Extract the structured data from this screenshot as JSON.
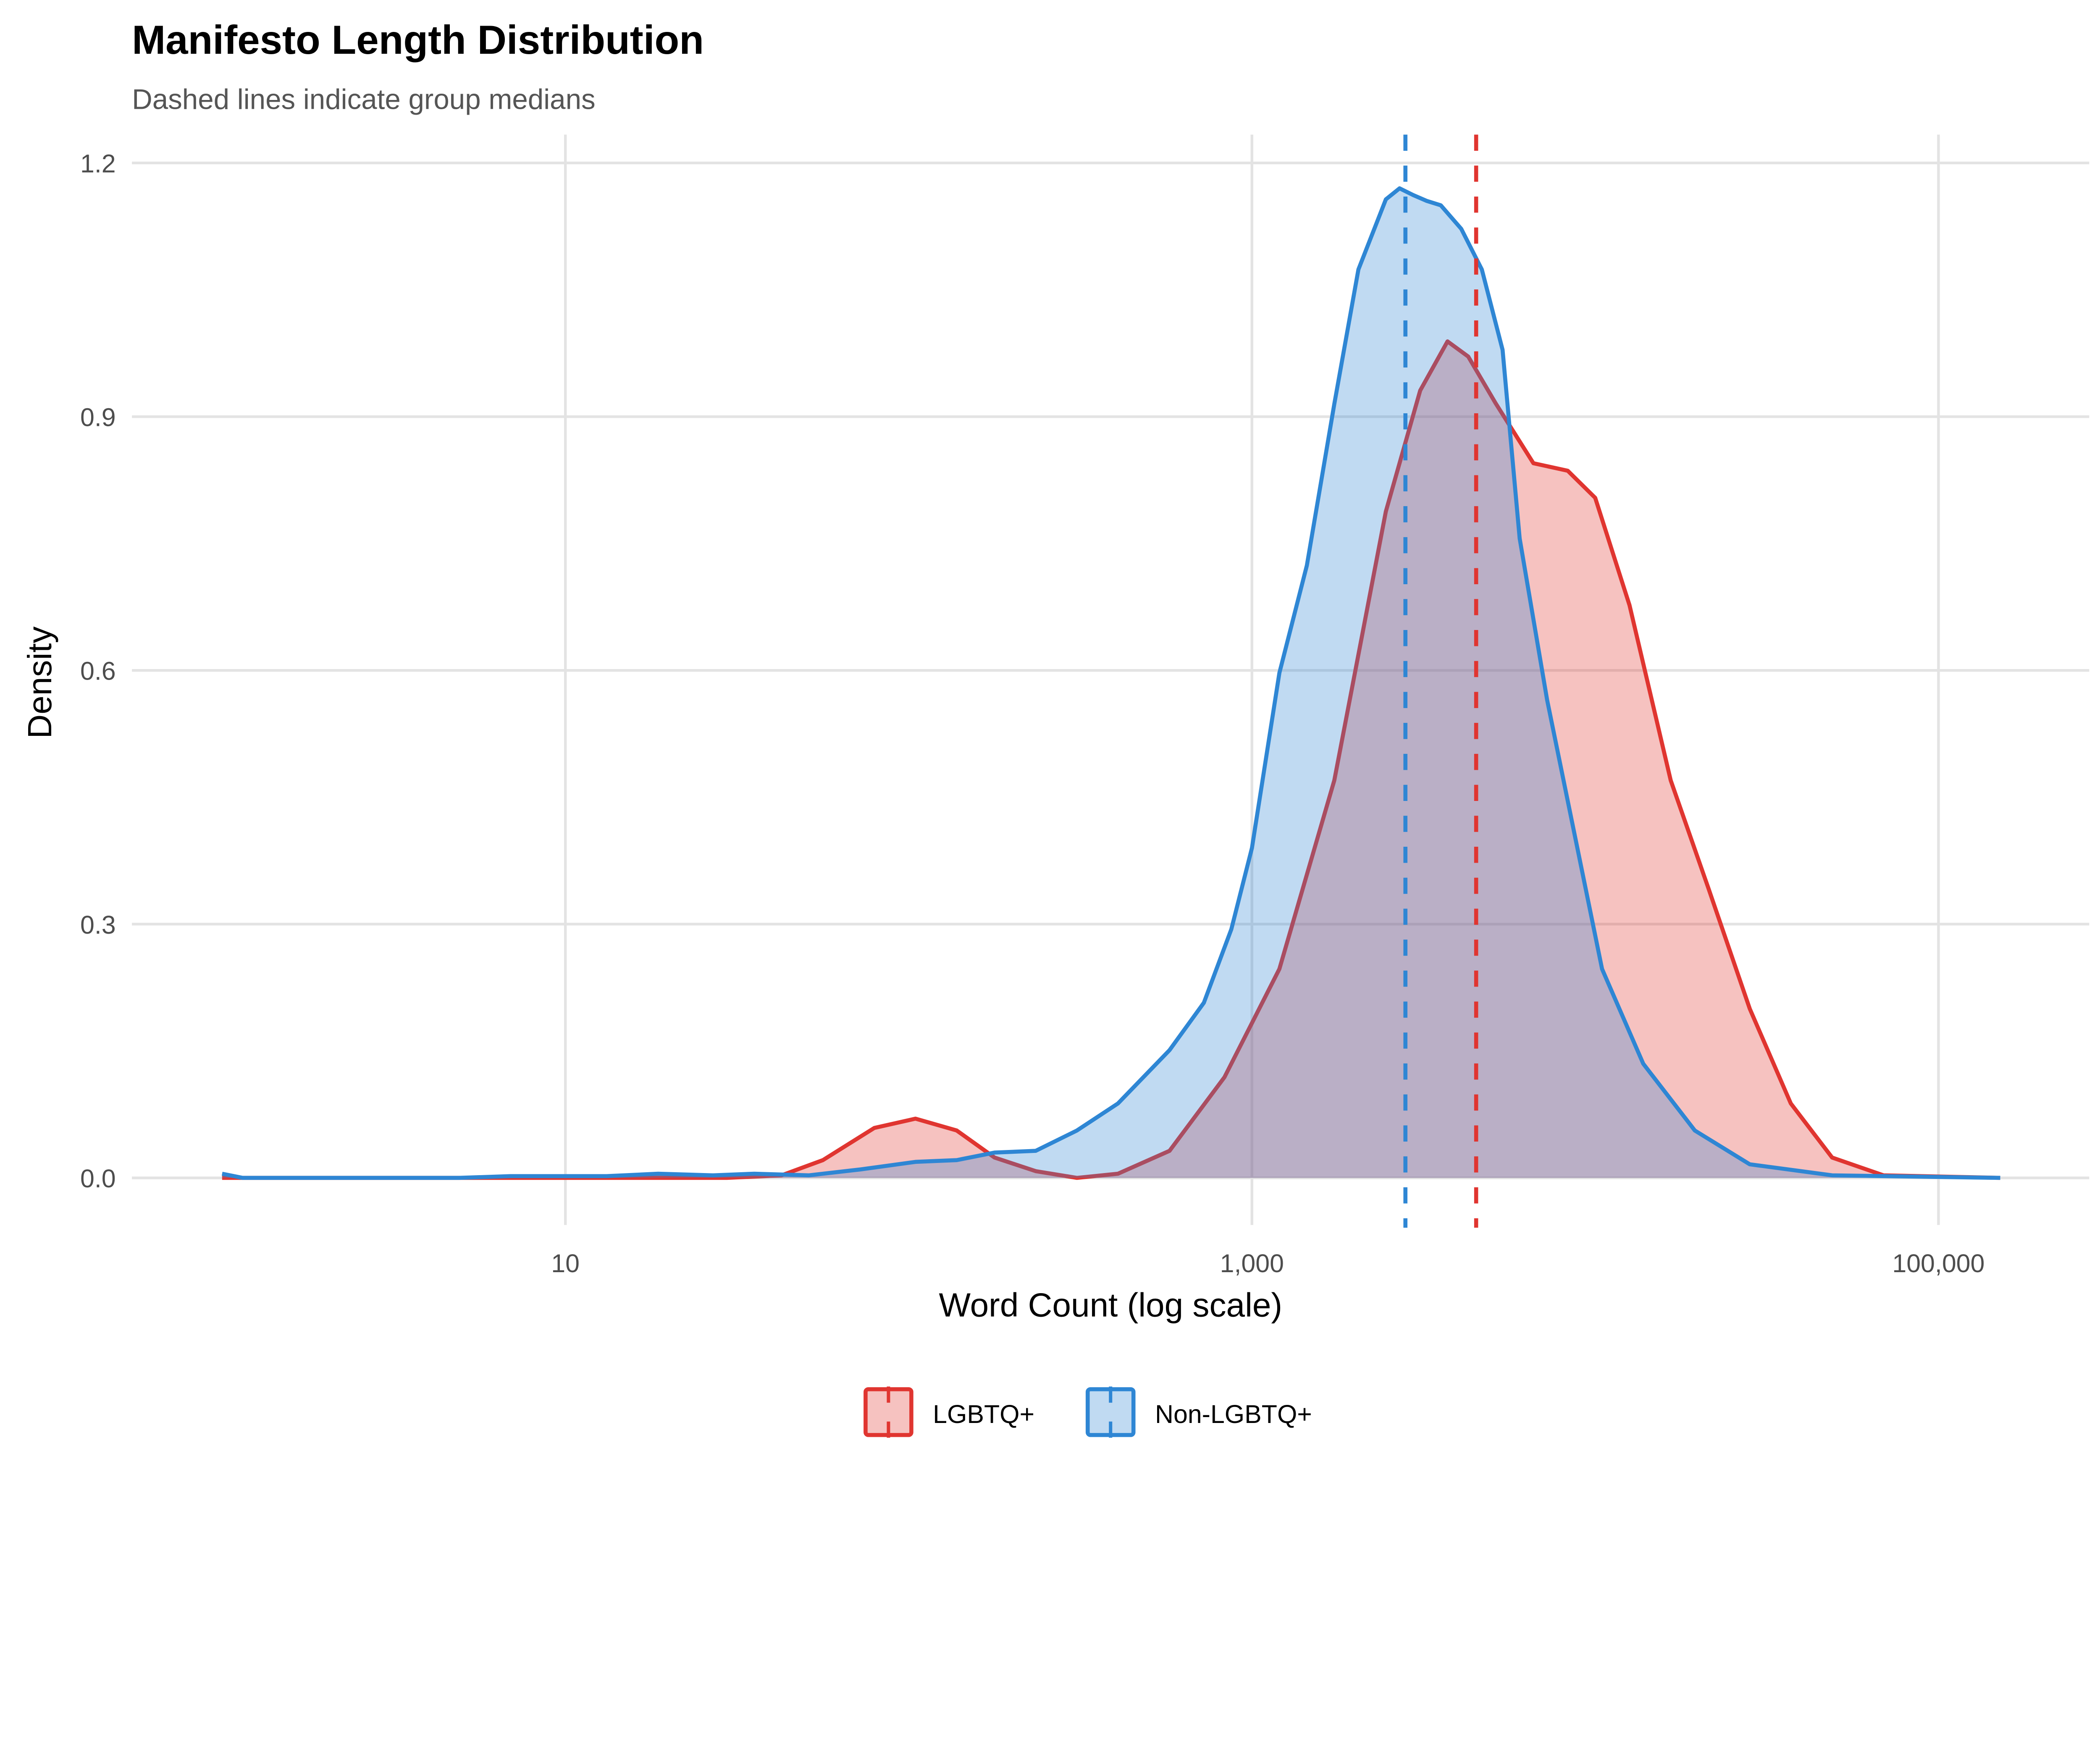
{
  "chart_data": {
    "type": "area",
    "title": "Manifesto Length Distribution",
    "subtitle": "Dashed lines indicate group medians",
    "xlabel": "Word Count (log scale)",
    "ylabel": "Density",
    "x_scale": "log10",
    "xlim_log10": [
      0.0,
      5.18
    ],
    "ylim": [
      0,
      1.23
    ],
    "x_ticks": [
      {
        "value": 10,
        "label": "10"
      },
      {
        "value": 1000,
        "label": "1,000"
      },
      {
        "value": 100000,
        "label": "100,000"
      }
    ],
    "y_ticks": [
      {
        "value": 0,
        "label": "0.0"
      },
      {
        "value": 0.3,
        "label": "0.3"
      },
      {
        "value": 0.6,
        "label": "0.6"
      },
      {
        "value": 0.9,
        "label": "0.9"
      },
      {
        "value": 1.2,
        "label": "1.2"
      }
    ],
    "grid": true,
    "legend_position": "bottom",
    "series": [
      {
        "name": "LGBTQ+",
        "color": "#E03530",
        "median": 4500,
        "log10_x": [
          0,
          1.47,
          1.63,
          1.75,
          1.9,
          2.02,
          2.14,
          2.25,
          2.37,
          2.49,
          2.61,
          2.76,
          2.92,
          3.08,
          3.24,
          3.39,
          3.49,
          3.57,
          3.63,
          3.71,
          3.82,
          3.92,
          4.0,
          4.1,
          4.22,
          4.33,
          4.45,
          4.57,
          4.69,
          4.84,
          5.18
        ],
        "density": [
          0,
          0,
          0.003,
          0.021,
          0.059,
          0.07,
          0.056,
          0.024,
          0.008,
          0,
          0.005,
          0.032,
          0.119,
          0.247,
          0.47,
          0.788,
          0.931,
          0.989,
          0.971,
          0.916,
          0.845,
          0.836,
          0.804,
          0.677,
          0.47,
          0.342,
          0.2,
          0.088,
          0.024,
          0.003,
          0
        ]
      },
      {
        "name": "Non-LGBTQ+",
        "color": "#2E86D4",
        "median": 2800,
        "log10_x": [
          0,
          0.06,
          0.69,
          0.84,
          1.0,
          1.12,
          1.27,
          1.43,
          1.55,
          1.71,
          1.86,
          2.02,
          2.14,
          2.25,
          2.37,
          2.49,
          2.61,
          2.76,
          2.86,
          2.94,
          3.0,
          3.08,
          3.16,
          3.24,
          3.31,
          3.39,
          3.43,
          3.47,
          3.51,
          3.55,
          3.61,
          3.67,
          3.73,
          3.78,
          3.86,
          3.94,
          4.02,
          4.14,
          4.29,
          4.45,
          4.69,
          5.18
        ],
        "density": [
          0.005,
          0,
          0,
          0.002,
          0.002,
          0.002,
          0.005,
          0.003,
          0.005,
          0.003,
          0.01,
          0.019,
          0.021,
          0.03,
          0.032,
          0.056,
          0.088,
          0.151,
          0.207,
          0.294,
          0.39,
          0.597,
          0.724,
          0.915,
          1.074,
          1.157,
          1.17,
          1.162,
          1.155,
          1.15,
          1.122,
          1.074,
          0.979,
          0.756,
          0.565,
          0.406,
          0.247,
          0.135,
          0.056,
          0.016,
          0.003,
          0
        ]
      }
    ]
  }
}
